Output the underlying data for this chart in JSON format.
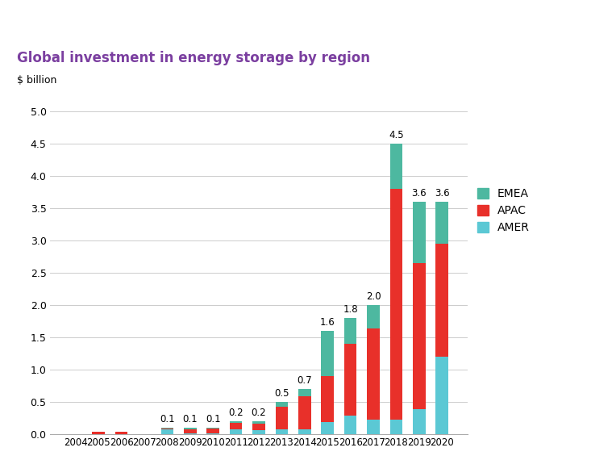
{
  "years": [
    2004,
    2005,
    2006,
    2007,
    2008,
    2009,
    2010,
    2011,
    2012,
    2013,
    2014,
    2015,
    2016,
    2017,
    2018,
    2019,
    2020
  ],
  "AMER": [
    0.0,
    0.0,
    0.0,
    0.0,
    0.07,
    0.01,
    0.01,
    0.07,
    0.06,
    0.07,
    0.07,
    0.18,
    0.28,
    0.22,
    0.22,
    0.38,
    1.2
  ],
  "APAC": [
    0.0,
    0.03,
    0.04,
    0.0,
    0.01,
    0.06,
    0.08,
    0.1,
    0.1,
    0.35,
    0.52,
    0.72,
    1.12,
    1.42,
    3.58,
    2.27,
    1.75
  ],
  "EMEA": [
    0.0,
    0.0,
    0.0,
    0.0,
    0.02,
    0.03,
    0.01,
    0.03,
    0.04,
    0.08,
    0.11,
    0.7,
    0.4,
    0.36,
    0.7,
    0.95,
    0.65
  ],
  "totals": [
    0.0,
    0.0,
    0.0,
    0.0,
    0.1,
    0.1,
    0.1,
    0.2,
    0.2,
    0.5,
    0.7,
    1.6,
    1.8,
    2.0,
    4.5,
    3.6,
    3.6
  ],
  "show_total": [
    false,
    false,
    false,
    false,
    true,
    true,
    true,
    true,
    true,
    true,
    true,
    true,
    true,
    true,
    true,
    true,
    true
  ],
  "title": "Global investment in energy storage by region",
  "ylabel": "$ billion",
  "ylim": [
    0,
    5.2
  ],
  "yticks": [
    0.0,
    0.5,
    1.0,
    1.5,
    2.0,
    2.5,
    3.0,
    3.5,
    4.0,
    4.5,
    5.0
  ],
  "color_AMER": "#5bc8d4",
  "color_APAC": "#e8302a",
  "color_EMEA": "#4db8a0",
  "title_color": "#7B3FA0",
  "background_color": "#ffffff"
}
